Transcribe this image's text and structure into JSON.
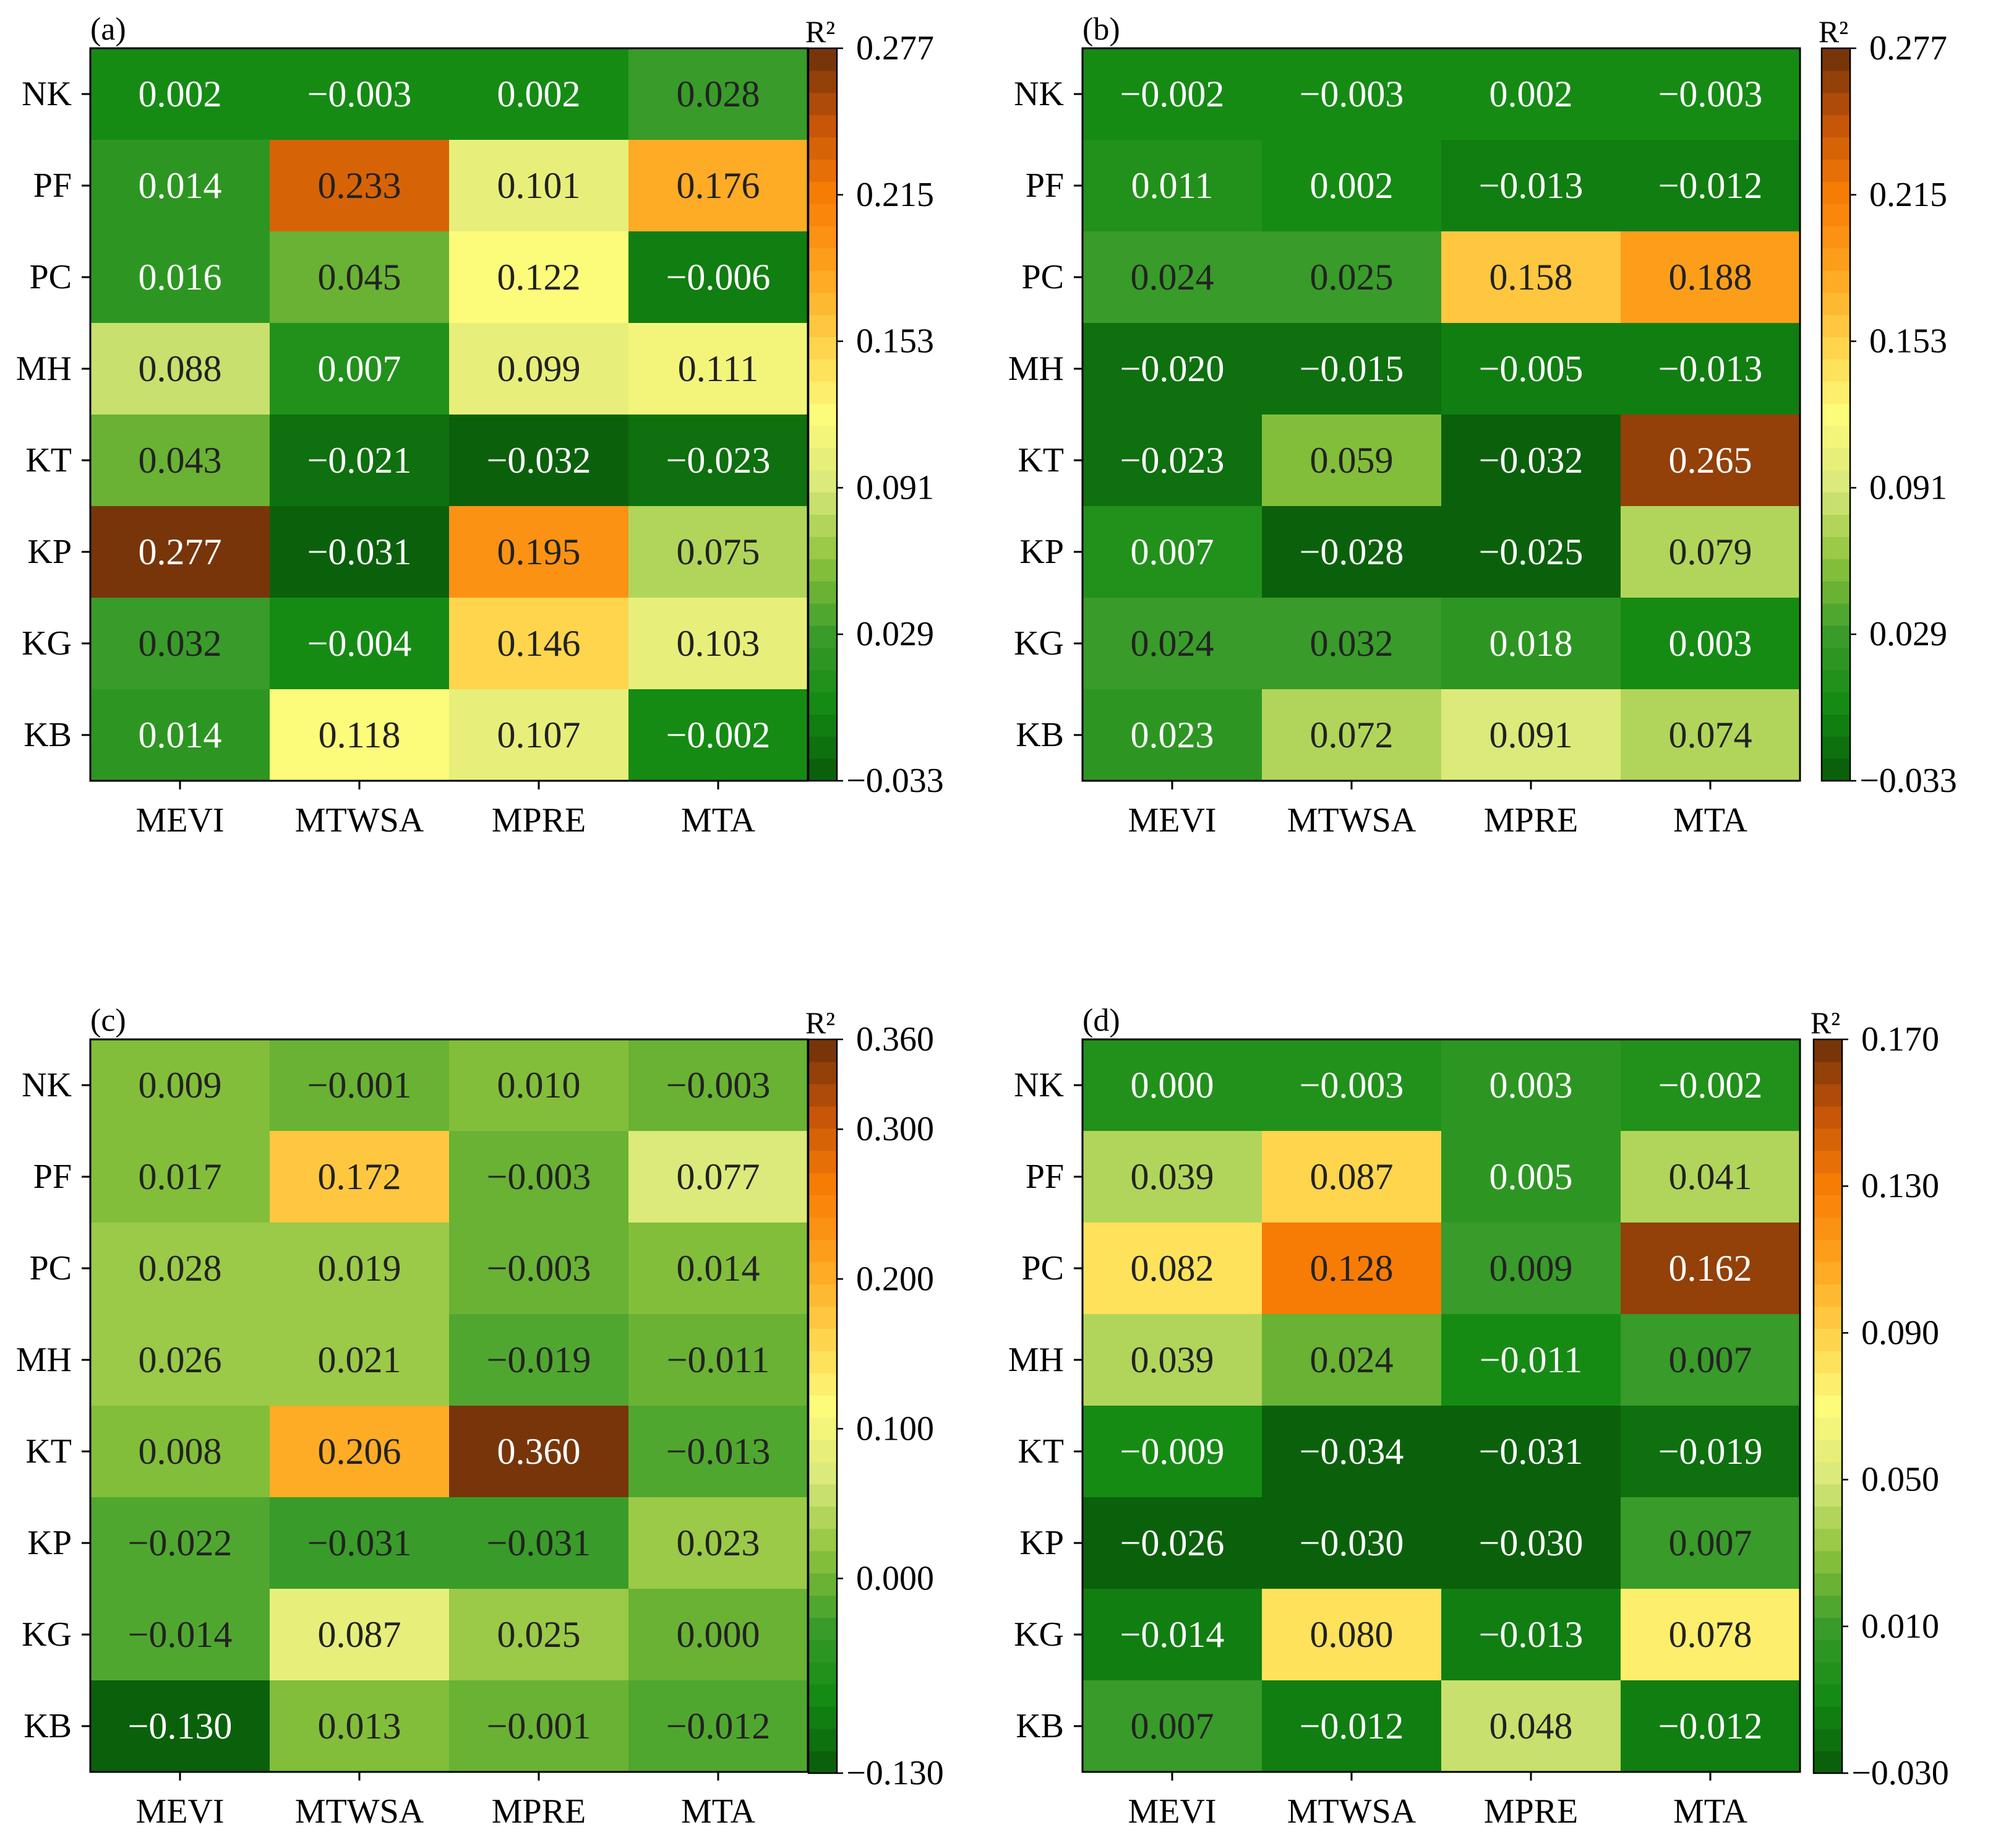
{
  "chart_data": [
    {
      "panel": "(a)",
      "type": "heatmap",
      "rows": [
        "NK",
        "PF",
        "PC",
        "MH",
        "KT",
        "KP",
        "KG",
        "KB"
      ],
      "columns": [
        "MEVI",
        "MTWSA",
        "MPRE",
        "MTA"
      ],
      "values": [
        [
          0.002,
          -0.003,
          0.002,
          0.028
        ],
        [
          0.014,
          0.233,
          0.101,
          0.176
        ],
        [
          0.016,
          0.045,
          0.122,
          -0.006
        ],
        [
          0.088,
          0.007,
          0.099,
          0.111
        ],
        [
          0.043,
          -0.021,
          -0.032,
          -0.023
        ],
        [
          0.277,
          -0.031,
          0.195,
          0.075
        ],
        [
          0.032,
          -0.004,
          0.146,
          0.103
        ],
        [
          0.014,
          0.118,
          0.107,
          -0.002
        ]
      ],
      "labels": [
        [
          "0.002",
          "−0.003",
          "0.002",
          "0.028"
        ],
        [
          "0.014",
          "0.233",
          "0.101",
          "0.176"
        ],
        [
          "0.016",
          "0.045",
          "0.122",
          "−0.006"
        ],
        [
          "0.088",
          "0.007",
          "0.099",
          "0.111"
        ],
        [
          "0.043",
          "−0.021",
          "−0.032",
          "−0.023"
        ],
        [
          "0.277",
          "−0.031",
          "0.195",
          "0.075"
        ],
        [
          "0.032",
          "−0.004",
          "0.146",
          "0.103"
        ],
        [
          "0.014",
          "0.118",
          "0.107",
          "−0.002"
        ]
      ],
      "colorbar": {
        "label": "R²",
        "range": [
          -0.033,
          0.277
        ],
        "ticks": [
          0.277,
          0.215,
          0.153,
          0.091,
          0.029,
          -0.033
        ],
        "tick_labels": [
          "0.277",
          "0.215",
          "0.153",
          "0.091",
          "0.029",
          "−0.033"
        ]
      }
    },
    {
      "panel": "(b)",
      "type": "heatmap",
      "rows": [
        "NK",
        "PF",
        "PC",
        "MH",
        "KT",
        "KP",
        "KG",
        "KB"
      ],
      "columns": [
        "MEVI",
        "MTWSA",
        "MPRE",
        "MTA"
      ],
      "values": [
        [
          -0.002,
          -0.003,
          0.002,
          -0.003
        ],
        [
          0.011,
          0.002,
          -0.013,
          -0.012
        ],
        [
          0.024,
          0.025,
          0.158,
          0.188
        ],
        [
          -0.02,
          -0.015,
          -0.005,
          -0.013
        ],
        [
          -0.023,
          0.059,
          -0.032,
          0.265
        ],
        [
          0.007,
          -0.028,
          -0.025,
          0.079
        ],
        [
          0.024,
          0.032,
          0.018,
          0.003
        ],
        [
          0.023,
          0.072,
          0.091,
          0.074
        ]
      ],
      "labels": [
        [
          "−0.002",
          "−0.003",
          "0.002",
          "−0.003"
        ],
        [
          "0.011",
          "0.002",
          "−0.013",
          "−0.012"
        ],
        [
          "0.024",
          "0.025",
          "0.158",
          "0.188"
        ],
        [
          "−0.020",
          "−0.015",
          "−0.005",
          "−0.013"
        ],
        [
          "−0.023",
          "0.059",
          "−0.032",
          "0.265"
        ],
        [
          "0.007",
          "−0.028",
          "−0.025",
          "0.079"
        ],
        [
          "0.024",
          "0.032",
          "0.018",
          "0.003"
        ],
        [
          "0.023",
          "0.072",
          "0.091",
          "0.074"
        ]
      ],
      "colorbar": {
        "label": "R²",
        "range": [
          -0.033,
          0.277
        ],
        "ticks": [
          0.277,
          0.215,
          0.153,
          0.091,
          0.029,
          -0.033
        ],
        "tick_labels": [
          "0.277",
          "0.215",
          "0.153",
          "0.091",
          "0.029",
          "−0.033"
        ]
      }
    },
    {
      "panel": "(c)",
      "type": "heatmap",
      "rows": [
        "NK",
        "PF",
        "PC",
        "MH",
        "KT",
        "KP",
        "KG",
        "KB"
      ],
      "columns": [
        "MEVI",
        "MTWSA",
        "MPRE",
        "MTA"
      ],
      "values": [
        [
          0.009,
          -0.001,
          0.01,
          -0.003
        ],
        [
          0.017,
          0.172,
          -0.003,
          0.077
        ],
        [
          0.028,
          0.019,
          -0.003,
          0.014
        ],
        [
          0.026,
          0.021,
          -0.019,
          -0.011
        ],
        [
          0.008,
          0.206,
          0.36,
          -0.013
        ],
        [
          -0.022,
          -0.031,
          -0.031,
          0.023
        ],
        [
          -0.014,
          0.087,
          0.025,
          0.0
        ],
        [
          -0.13,
          0.013,
          -0.001,
          -0.012
        ]
      ],
      "labels": [
        [
          "0.009",
          "−0.001",
          "0.010",
          "−0.003"
        ],
        [
          "0.017",
          "0.172",
          "−0.003",
          "0.077"
        ],
        [
          "0.028",
          "0.019",
          "−0.003",
          "0.014"
        ],
        [
          "0.026",
          "0.021",
          "−0.019",
          "−0.011"
        ],
        [
          "0.008",
          "0.206",
          "0.360",
          "−0.013"
        ],
        [
          "−0.022",
          "−0.031",
          "−0.031",
          "0.023"
        ],
        [
          "−0.014",
          "0.087",
          "0.025",
          "0.000"
        ],
        [
          "−0.130",
          "0.013",
          "−0.001",
          "−0.012"
        ]
      ],
      "colorbar": {
        "label": "R²",
        "range": [
          -0.13,
          0.36
        ],
        "ticks": [
          0.36,
          0.3,
          0.2,
          0.1,
          0.0,
          -0.13
        ],
        "tick_labels": [
          "0.360",
          "0.300",
          "0.200",
          "0.100",
          "0.000",
          "−0.130"
        ]
      }
    },
    {
      "panel": "(d)",
      "type": "heatmap",
      "rows": [
        "NK",
        "PF",
        "PC",
        "MH",
        "KT",
        "KP",
        "KG",
        "KB"
      ],
      "columns": [
        "MEVI",
        "MTWSA",
        "MPRE",
        "MTA"
      ],
      "values": [
        [
          0.0,
          -0.003,
          0.003,
          -0.002
        ],
        [
          0.039,
          0.087,
          0.005,
          0.041
        ],
        [
          0.082,
          0.128,
          0.009,
          0.162
        ],
        [
          0.039,
          0.024,
          -0.011,
          0.007
        ],
        [
          -0.009,
          -0.034,
          -0.031,
          -0.019
        ],
        [
          -0.026,
          -0.03,
          -0.03,
          0.007
        ],
        [
          -0.014,
          0.08,
          -0.013,
          0.078
        ],
        [
          0.007,
          -0.012,
          0.048,
          -0.012
        ]
      ],
      "labels": [
        [
          "0.000",
          "−0.003",
          "0.003",
          "−0.002"
        ],
        [
          "0.039",
          "0.087",
          "0.005",
          "0.041"
        ],
        [
          "0.082",
          "0.128",
          "0.009",
          "0.162"
        ],
        [
          "0.039",
          "0.024",
          "−0.011",
          "0.007"
        ],
        [
          "−0.009",
          "−0.034",
          "−0.031",
          "−0.019"
        ],
        [
          "−0.026",
          "−0.030",
          "−0.030",
          "0.007"
        ],
        [
          "−0.014",
          "0.080",
          "−0.013",
          "0.078"
        ],
        [
          "0.007",
          "−0.012",
          "0.048",
          "−0.012"
        ]
      ],
      "colorbar": {
        "label": "R²",
        "range": [
          -0.03,
          0.17
        ],
        "ticks": [
          0.17,
          0.13,
          0.09,
          0.05,
          0.01,
          -0.03
        ],
        "tick_labels": [
          "0.170",
          "0.130",
          "0.090",
          "0.050",
          "0.010",
          "−0.030"
        ]
      }
    }
  ],
  "colors": {
    "colormap_stops": [
      "#0a5a0a",
      "#138a13",
      "#3a9c2a",
      "#8cc33c",
      "#d8e87a",
      "#fdfb7a",
      "#fed148",
      "#fea21d",
      "#f97d06",
      "#c45408",
      "#6a300a"
    ]
  }
}
